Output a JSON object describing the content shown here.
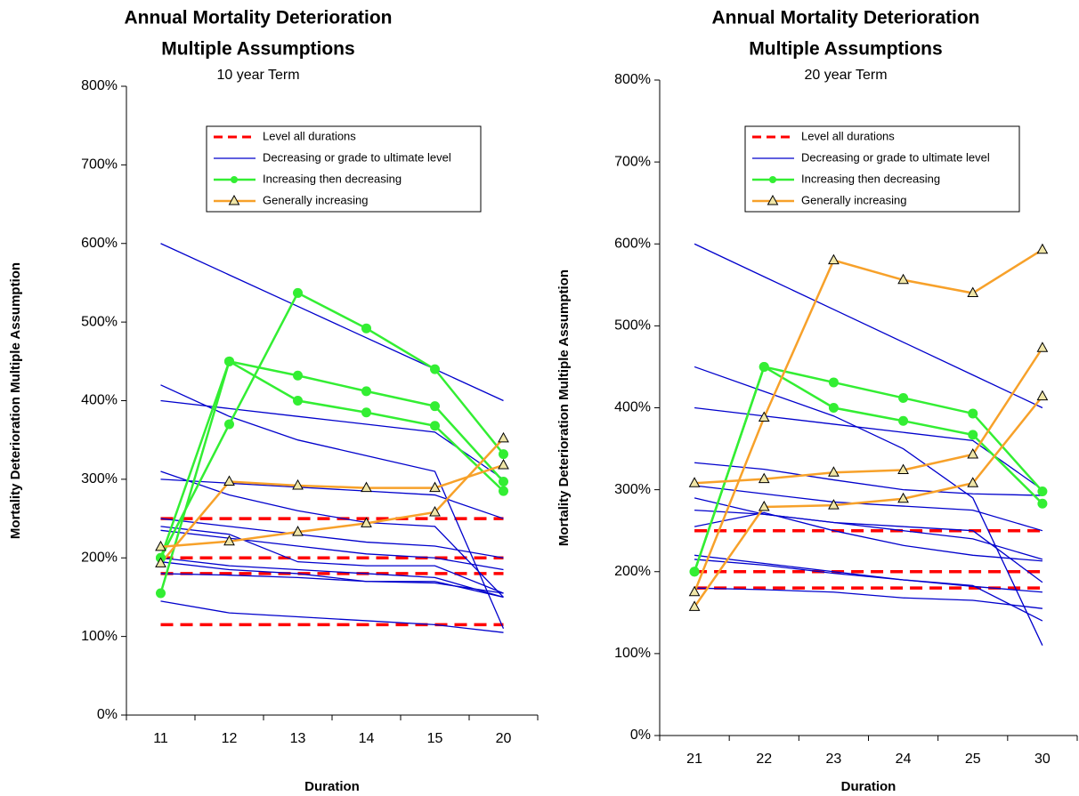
{
  "chart_data": [
    {
      "type": "line",
      "title": [
        "Annual Mortality Deterioration",
        "Multiple Assumptions"
      ],
      "subtitle": "10 year Term",
      "x_label": "Duration",
      "y_label": "Mortality Deterioration Multiple Assumption",
      "categories": [
        "11",
        "12",
        "13",
        "14",
        "15",
        "20"
      ],
      "ylim": [
        0,
        800
      ],
      "yticks": [
        {
          "value": 0,
          "label": "0%"
        },
        {
          "value": 100,
          "label": "100%"
        },
        {
          "value": 200,
          "label": "200%"
        },
        {
          "value": 300,
          "label": "300%"
        },
        {
          "value": 400,
          "label": "400%"
        },
        {
          "value": 500,
          "label": "500%"
        },
        {
          "value": 600,
          "label": "600%"
        },
        {
          "value": 700,
          "label": "700%"
        },
        {
          "value": 800,
          "label": "800%"
        }
      ],
      "legend": "upper center",
      "series": [
        {
          "name": "Level all durations",
          "color": "#ff0000",
          "dashed": true,
          "marker": null,
          "lines": [
            [
              250,
              250,
              250,
              250,
              250,
              250
            ],
            [
              200,
              200,
              200,
              200,
              200,
              200
            ],
            [
              180,
              180,
              180,
              180,
              180,
              180
            ],
            [
              115,
              115,
              115,
              115,
              115,
              115
            ]
          ]
        },
        {
          "name": "Decreasing or grade to ultimate level",
          "color": "#0000cc",
          "dashed": false,
          "marker": null,
          "lines": [
            [
              600,
              560,
              520,
              480,
              440,
              400
            ],
            [
              420,
              380,
              350,
              330,
              310,
              110
            ],
            [
              400,
              390,
              380,
              370,
              360,
              300
            ],
            [
              310,
              280,
              260,
              245,
              240,
              150
            ],
            [
              300,
              295,
              290,
              285,
              280,
              250
            ],
            [
              250,
              240,
              230,
              220,
              215,
              200
            ],
            [
              240,
              230,
              195,
              190,
              190,
              155
            ],
            [
              235,
              225,
              215,
              205,
              200,
              185
            ],
            [
              200,
              190,
              185,
              180,
              175,
              150
            ],
            [
              195,
              185,
              180,
              170,
              170,
              150
            ],
            [
              180,
              178,
              175,
              170,
              168,
              155
            ],
            [
              145,
              130,
              125,
              120,
              115,
              105
            ]
          ]
        },
        {
          "name": "Increasing then decreasing",
          "color": "#33ee33",
          "dashed": false,
          "marker": "circle",
          "lines": [
            [
              155,
              450,
              400,
              385,
              368,
              285
            ],
            [
              200,
              450,
              432,
              412,
              393,
              297
            ],
            [
              200,
              370,
              537,
              492,
              440,
              332
            ]
          ]
        },
        {
          "name": "Generally increasing",
          "color": "#f7a12a",
          "dashed": false,
          "marker": "triangle",
          "lines": [
            [
              214,
              221,
              233,
              244,
              258,
              352
            ],
            [
              193,
              297,
              292,
              289,
              289,
              318
            ]
          ]
        }
      ]
    },
    {
      "type": "line",
      "title": [
        "Annual Mortality Deterioration",
        "Multiple Assumptions"
      ],
      "subtitle": "20 year Term",
      "x_label": "Duration",
      "y_label": "Mortality Deterioration Multiple Assumption",
      "categories": [
        "21",
        "22",
        "23",
        "24",
        "25",
        "30"
      ],
      "ylim": [
        0,
        800
      ],
      "yticks": [
        {
          "value": 0,
          "label": "0%"
        },
        {
          "value": 100,
          "label": "100%"
        },
        {
          "value": 200,
          "label": "200%"
        },
        {
          "value": 300,
          "label": "300%"
        },
        {
          "value": 400,
          "label": "400%"
        },
        {
          "value": 500,
          "label": "500%"
        },
        {
          "value": 600,
          "label": "600%"
        },
        {
          "value": 700,
          "label": "700%"
        },
        {
          "value": 800,
          "label": "800%"
        }
      ],
      "legend": "upper center",
      "series": [
        {
          "name": "Level all durations",
          "color": "#ff0000",
          "dashed": true,
          "marker": null,
          "lines": [
            [
              250,
              250,
              250,
              250,
              250,
              250
            ],
            [
              200,
              200,
              200,
              200,
              200,
              200
            ],
            [
              180,
              180,
              180,
              180,
              180,
              180
            ]
          ]
        },
        {
          "name": "Decreasing or grade to ultimate level",
          "color": "#0000cc",
          "dashed": false,
          "marker": null,
          "lines": [
            [
              600,
              560,
              520,
              480,
              440,
              400
            ],
            [
              450,
              420,
              390,
              350,
              290,
              110
            ],
            [
              400,
              390,
              380,
              370,
              360,
              300
            ],
            [
              333,
              325,
              312,
              300,
              295,
              293
            ],
            [
              305,
              295,
              285,
              280,
              275,
              250
            ],
            [
              290,
              270,
              260,
              250,
              240,
              215
            ],
            [
              275,
              270,
              260,
              255,
              250,
              187
            ],
            [
              255,
              272,
              250,
              232,
              220,
              213
            ],
            [
              220,
              210,
              200,
              190,
              182,
              175
            ],
            [
              215,
              208,
              198,
              190,
              183,
              140
            ],
            [
              180,
              178,
              175,
              168,
              165,
              155
            ]
          ]
        },
        {
          "name": "Increasing then decreasing",
          "color": "#33ee33",
          "dashed": false,
          "marker": "circle",
          "lines": [
            [
              200,
              450,
              431,
              412,
              393,
              298
            ],
            [
              200,
              450,
              400,
              384,
              367,
              283
            ]
          ]
        },
        {
          "name": "Generally increasing",
          "color": "#f7a12a",
          "dashed": false,
          "marker": "triangle",
          "lines": [
            [
              175,
              388,
              580,
              556,
              540,
              593
            ],
            [
              308,
              313,
              321,
              324,
              343,
              473
            ],
            [
              157,
              279,
              281,
              289,
              308,
              414
            ]
          ]
        }
      ]
    }
  ]
}
